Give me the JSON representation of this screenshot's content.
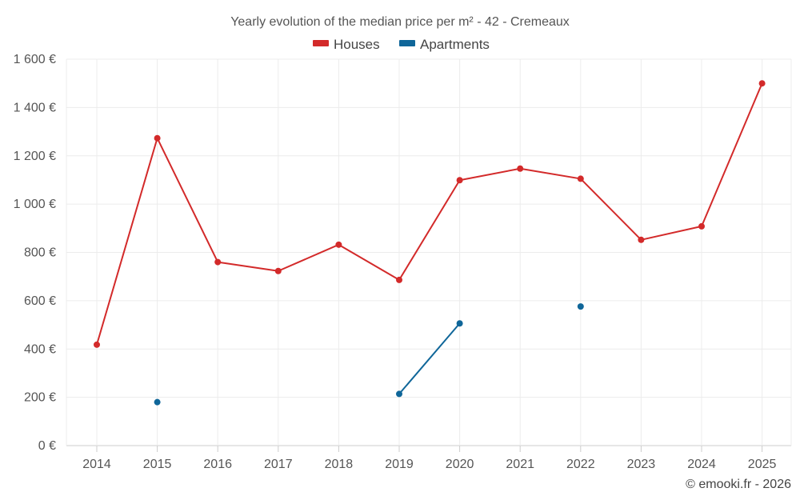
{
  "chart_data": {
    "type": "line",
    "title": "Yearly evolution of the median price per m² - 42 - Cremeaux",
    "categories": [
      "2014",
      "2015",
      "2016",
      "2017",
      "2018",
      "2019",
      "2020",
      "2021",
      "2022",
      "2023",
      "2024",
      "2025"
    ],
    "y_ticks": [
      0,
      200,
      400,
      600,
      800,
      1000,
      1200,
      1400,
      1600
    ],
    "y_tick_labels": [
      "0 €",
      "200 €",
      "400 €",
      "600 €",
      "800 €",
      "1 000 €",
      "1 200 €",
      "1 400 €",
      "1 600 €"
    ],
    "ylim": [
      0,
      1600
    ],
    "grid": true,
    "legend_position": "top-center",
    "series": [
      {
        "name": "Houses",
        "color": "#d32a2a",
        "values": [
          418,
          1273,
          760,
          723,
          832,
          686,
          1099,
          1147,
          1105,
          852,
          908,
          1500
        ]
      },
      {
        "name": "Apartments",
        "color": "#0f6699",
        "values": [
          null,
          180,
          null,
          null,
          null,
          214,
          506,
          null,
          576,
          null,
          null,
          null
        ]
      }
    ],
    "credit": "© emooki.fr - 2026"
  }
}
